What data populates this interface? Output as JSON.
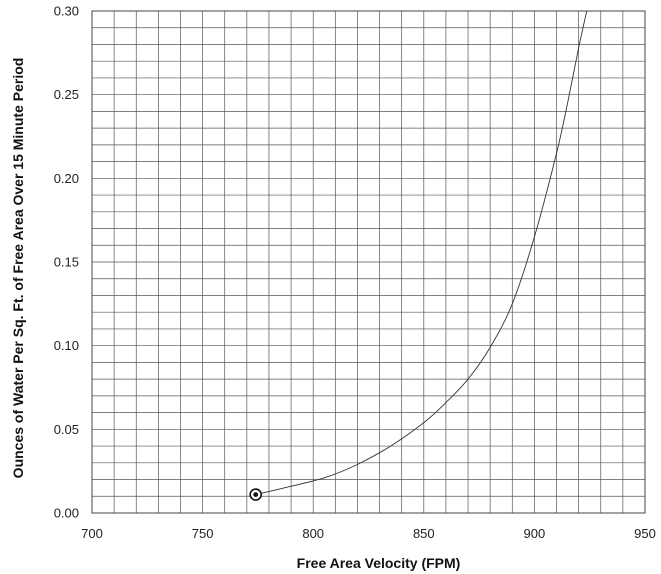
{
  "chart_data": {
    "type": "line",
    "xlabel": "Free Area Velocity (FPM)",
    "ylabel": "Ounces of Water Per Sq. Ft. of Free Area Over 15 Minute Period",
    "xlim": [
      700,
      950
    ],
    "ylim": [
      0,
      0.3
    ],
    "x_ticks": [
      "700",
      "750",
      "800",
      "850",
      "900",
      "950"
    ],
    "y_ticks": [
      "0.00",
      "0.05",
      "0.10",
      "0.15",
      "0.20",
      "0.25",
      "0.30"
    ],
    "x_minor_step": 10,
    "y_minor_step": 0.01,
    "grid": true,
    "series": [
      {
        "x": [
          774,
          790,
          805,
          820,
          835,
          850,
          860,
          870,
          880,
          890,
          900,
          910,
          915,
          920,
          924
        ],
        "y": [
          0.011,
          0.016,
          0.021,
          0.029,
          0.04,
          0.054,
          0.066,
          0.08,
          0.099,
          0.125,
          0.165,
          0.215,
          0.245,
          0.278,
          0.302
        ]
      }
    ],
    "start_marker": {
      "x": 774,
      "y": 0.011
    }
  }
}
